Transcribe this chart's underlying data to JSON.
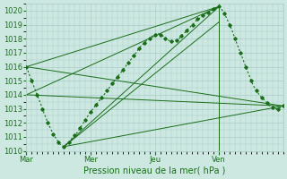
{
  "xlabel": "Pression niveau de la mer( hPa )",
  "ylabel": "",
  "ylim": [
    1010,
    1020.5
  ],
  "yticks": [
    1010,
    1011,
    1012,
    1013,
    1014,
    1015,
    1016,
    1017,
    1018,
    1019,
    1020
  ],
  "xtick_labels": [
    "Mar",
    "Mer",
    "Jeu",
    "Ven"
  ],
  "xtick_positions": [
    0.0,
    2.0,
    4.0,
    6.0
  ],
  "xlim": [
    0,
    8.0
  ],
  "bg_color": "#cce8e0",
  "grid_color": "#aacccc",
  "line_color": "#1a6e1a",
  "vline_x": 6.0,
  "main_line": [
    [
      0.0,
      1016.0
    ],
    [
      0.08,
      1015.5
    ],
    [
      0.16,
      1015.0
    ],
    [
      0.25,
      1014.5
    ],
    [
      0.33,
      1014.0
    ],
    [
      0.42,
      1013.5
    ],
    [
      0.5,
      1013.0
    ],
    [
      0.58,
      1012.5
    ],
    [
      0.67,
      1012.0
    ],
    [
      0.75,
      1011.6
    ],
    [
      0.83,
      1011.2
    ],
    [
      0.92,
      1010.9
    ],
    [
      1.0,
      1010.6
    ],
    [
      1.08,
      1010.4
    ],
    [
      1.17,
      1010.3
    ],
    [
      1.25,
      1010.5
    ],
    [
      1.33,
      1010.6
    ],
    [
      1.42,
      1010.9
    ],
    [
      1.5,
      1011.1
    ],
    [
      1.58,
      1011.3
    ],
    [
      1.67,
      1011.6
    ],
    [
      1.75,
      1011.9
    ],
    [
      1.83,
      1012.2
    ],
    [
      1.92,
      1012.5
    ],
    [
      2.0,
      1012.8
    ],
    [
      2.08,
      1013.0
    ],
    [
      2.17,
      1013.3
    ],
    [
      2.25,
      1013.5
    ],
    [
      2.33,
      1013.8
    ],
    [
      2.42,
      1014.0
    ],
    [
      2.5,
      1014.3
    ],
    [
      2.58,
      1014.5
    ],
    [
      2.67,
      1014.8
    ],
    [
      2.75,
      1015.0
    ],
    [
      2.83,
      1015.3
    ],
    [
      2.92,
      1015.5
    ],
    [
      3.0,
      1015.8
    ],
    [
      3.08,
      1016.0
    ],
    [
      3.17,
      1016.3
    ],
    [
      3.25,
      1016.5
    ],
    [
      3.33,
      1016.8
    ],
    [
      3.42,
      1017.0
    ],
    [
      3.5,
      1017.3
    ],
    [
      3.58,
      1017.5
    ],
    [
      3.67,
      1017.7
    ],
    [
      3.75,
      1017.9
    ],
    [
      3.83,
      1018.0
    ],
    [
      3.92,
      1018.2
    ],
    [
      4.0,
      1018.3
    ],
    [
      4.08,
      1018.4
    ],
    [
      4.17,
      1018.3
    ],
    [
      4.25,
      1018.2
    ],
    [
      4.33,
      1018.0
    ],
    [
      4.42,
      1017.9
    ],
    [
      4.5,
      1017.8
    ],
    [
      4.58,
      1017.8
    ],
    [
      4.67,
      1017.9
    ],
    [
      4.75,
      1018.0
    ],
    [
      4.83,
      1018.2
    ],
    [
      4.92,
      1018.4
    ],
    [
      5.0,
      1018.6
    ],
    [
      5.08,
      1018.8
    ],
    [
      5.17,
      1019.0
    ],
    [
      5.25,
      1019.2
    ],
    [
      5.33,
      1019.4
    ],
    [
      5.42,
      1019.5
    ],
    [
      5.5,
      1019.7
    ],
    [
      5.58,
      1019.8
    ],
    [
      5.67,
      1019.9
    ],
    [
      5.75,
      1020.0
    ],
    [
      5.83,
      1020.1
    ],
    [
      5.92,
      1020.2
    ],
    [
      6.0,
      1020.3
    ],
    [
      6.08,
      1020.1
    ],
    [
      6.17,
      1019.8
    ],
    [
      6.25,
      1019.4
    ],
    [
      6.33,
      1019.0
    ],
    [
      6.42,
      1018.5
    ],
    [
      6.5,
      1018.0
    ],
    [
      6.58,
      1017.5
    ],
    [
      6.67,
      1017.0
    ],
    [
      6.75,
      1016.5
    ],
    [
      6.83,
      1016.0
    ],
    [
      6.92,
      1015.5
    ],
    [
      7.0,
      1015.0
    ],
    [
      7.08,
      1014.6
    ],
    [
      7.17,
      1014.3
    ],
    [
      7.25,
      1014.0
    ],
    [
      7.33,
      1013.8
    ],
    [
      7.42,
      1013.6
    ],
    [
      7.5,
      1013.4
    ],
    [
      7.58,
      1013.2
    ],
    [
      7.67,
      1013.1
    ],
    [
      7.75,
      1013.0
    ],
    [
      7.83,
      1013.0
    ],
    [
      7.92,
      1013.1
    ],
    [
      8.0,
      1013.2
    ]
  ],
  "envelope_lines": [
    [
      [
        0.0,
        1016.0
      ],
      [
        6.0,
        1020.3
      ]
    ],
    [
      [
        0.0,
        1016.0
      ],
      [
        8.0,
        1013.2
      ]
    ],
    [
      [
        1.17,
        1010.3
      ],
      [
        6.0,
        1020.3
      ]
    ],
    [
      [
        1.17,
        1010.3
      ],
      [
        8.0,
        1013.2
      ]
    ],
    [
      [
        0.0,
        1014.0
      ],
      [
        6.0,
        1020.3
      ]
    ],
    [
      [
        0.0,
        1014.0
      ],
      [
        8.0,
        1013.2
      ]
    ],
    [
      [
        1.17,
        1010.3
      ],
      [
        6.0,
        1019.2
      ]
    ]
  ]
}
